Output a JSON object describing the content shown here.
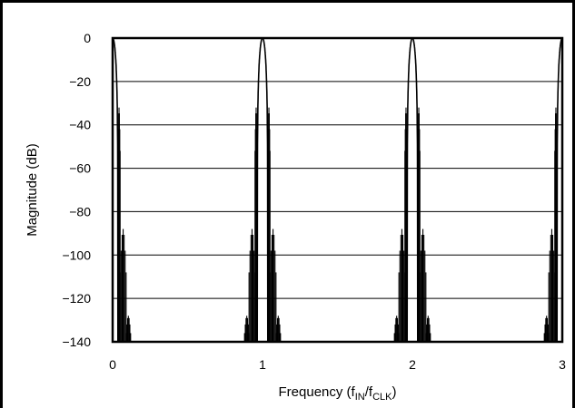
{
  "chart_data": {
    "type": "line",
    "title": "",
    "xlabel": "Frequency (f",
    "xlabel_sub_in": "IN",
    "xlabel_slash": "/f",
    "xlabel_sub_clk": "CLK",
    "xlabel_close": ")",
    "ylabel": "Magnitude (dB)",
    "xlim": [
      0,
      3
    ],
    "ylim": [
      -140,
      0
    ],
    "x_ticks": [
      0,
      1,
      2,
      3
    ],
    "x_tick_labels": [
      "0",
      "1",
      "2",
      "3"
    ],
    "y_ticks": [
      0,
      -20,
      -40,
      -60,
      -80,
      -100,
      -120,
      -140
    ],
    "y_tick_labels": [
      "0",
      "−20",
      "−40",
      "−60",
      "−80",
      "−100",
      "−120",
      "−140"
    ],
    "grid": "horizontal",
    "legend": "none",
    "series": [
      {
        "description": "filter magnitude response: main lobes at integer multiples of f_CLK, sidelobe comb between",
        "peaks": [
          {
            "x": 0,
            "y": 0
          },
          {
            "x": 1,
            "y": 0
          },
          {
            "x": 2,
            "y": 0
          },
          {
            "x": 3,
            "y": 0
          }
        ],
        "sidelobe_peaks_db": [
          -32,
          -88,
          -128
        ],
        "sidelobe_offsets": [
          0.05,
          0.09,
          0.12
        ],
        "color": "#000000"
      }
    ]
  }
}
